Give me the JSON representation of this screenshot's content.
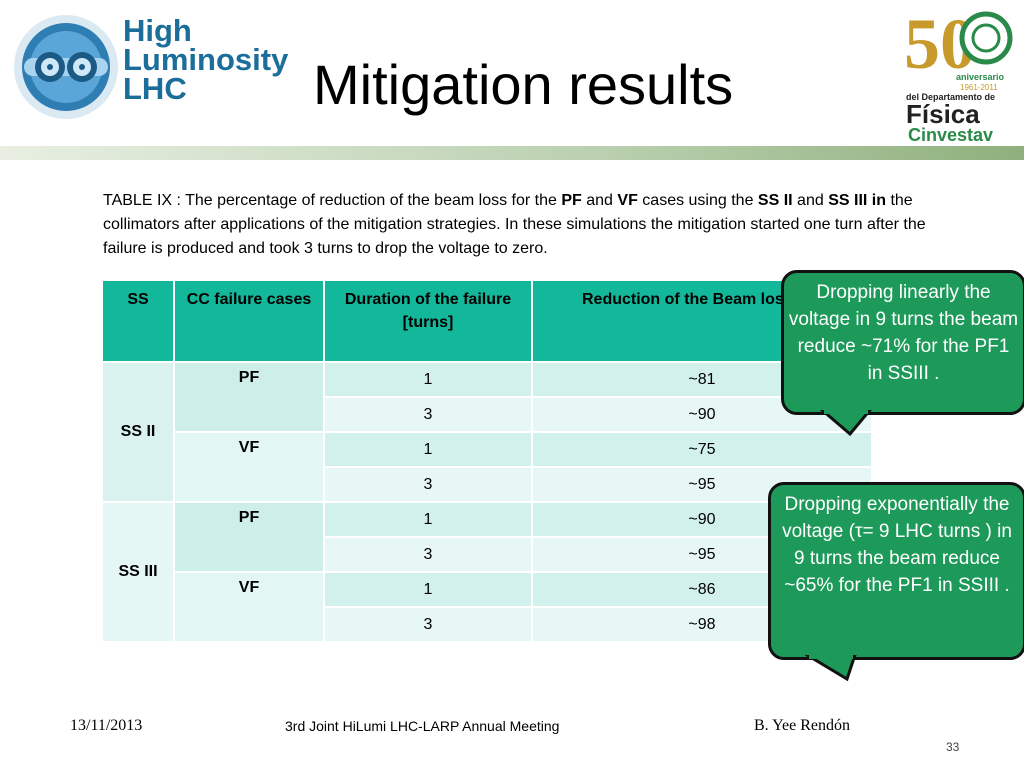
{
  "header": {
    "title": "Mitigation results",
    "logo_left": {
      "line1": "High",
      "line2": "Luminosity",
      "line3": "LHC"
    },
    "logo_right": {
      "number": "50",
      "line1": "aniversario",
      "line2": "1961-2011",
      "line3": "del Departamento de",
      "line4": "Física",
      "line5": "Cinvestav"
    }
  },
  "caption": {
    "part1": "TABLE IX : The  percentage of reduction of the beam loss for the ",
    "pf": "PF",
    "and1": " and ",
    "vf": "VF",
    "part2": " cases using the ",
    "ss2": "SS II",
    "and2": "   and ",
    "ss3": "SS III in",
    "part3": " the collimators after applications of the mitigation strategies. In these simulations the mitigation started one turn after the failure is produced and took 3 turns to drop the voltage to zero."
  },
  "table": {
    "headers": [
      "SS",
      "CC failure cases",
      "Duration of the failure [turns]",
      "Reduction of the Beam loss [%]"
    ],
    "groups": [
      {
        "ss": "SS II",
        "cases": [
          {
            "cc": "PF",
            "rows": [
              {
                "duration": "1",
                "reduction": "~81"
              },
              {
                "duration": "3",
                "reduction": "~90"
              }
            ]
          },
          {
            "cc": "VF",
            "rows": [
              {
                "duration": "1",
                "reduction": "~75"
              },
              {
                "duration": "3",
                "reduction": "~95"
              }
            ]
          }
        ]
      },
      {
        "ss": "SS III",
        "cases": [
          {
            "cc": "PF",
            "rows": [
              {
                "duration": "1",
                "reduction": "~90"
              },
              {
                "duration": "3",
                "reduction": "~95"
              }
            ]
          },
          {
            "cc": "VF",
            "rows": [
              {
                "duration": "1",
                "reduction": "~86"
              },
              {
                "duration": "3",
                "reduction": "~98"
              }
            ]
          }
        ]
      }
    ]
  },
  "callouts": [
    {
      "text": "Dropping linearly the voltage in 9 turns the beam reduce ~71% for the PF1 in SSIII ."
    },
    {
      "text": "Dropping exponentially the voltage (τ= 9 LHC turns ) in 9 turns the beam reduce ~65% for the PF1 in SSIII ."
    }
  ],
  "footer": {
    "date": "13/11/2013",
    "meeting": "3rd Joint HiLumi LHC-LARP Annual Meeting",
    "author": "B. Yee Rendón",
    "page": "33"
  },
  "colors": {
    "table_header": "#13b79a",
    "callout_fill": "#1d9a5a",
    "logo_blue": "#1b6d9a",
    "logo_green": "#2a8a4a"
  }
}
